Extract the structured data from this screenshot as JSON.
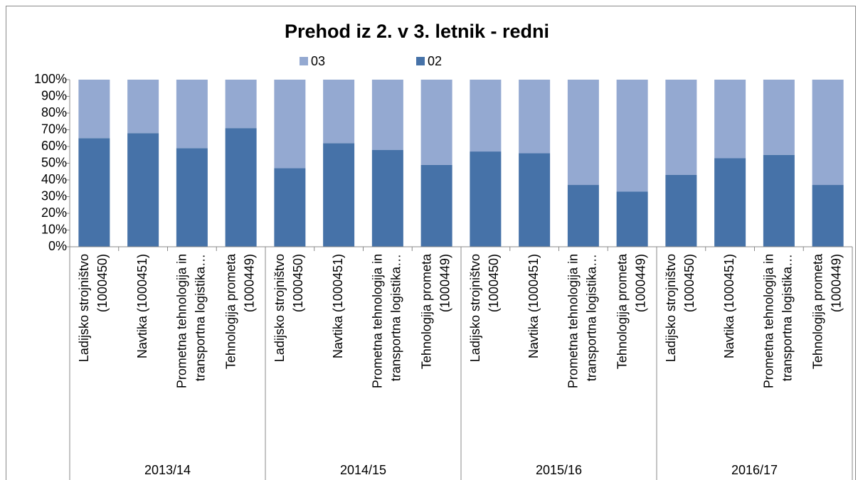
{
  "chart_data": {
    "type": "stacked_bar_100",
    "title": "Prehod iz 2. v 3. letnik - redni",
    "groups": [
      {
        "label": "2013/14",
        "categories": [
          [
            "Ladijsko strojništvo",
            "(1000450)"
          ],
          [
            "Navtika (1000451)"
          ],
          [
            "Prometna tehnologija in",
            "transportna logistika…"
          ],
          [
            "Tehnologija prometa",
            "(1000449)"
          ]
        ]
      },
      {
        "label": "2014/15",
        "categories": [
          [
            "Ladijsko strojništvo",
            "(1000450)"
          ],
          [
            "Navtika (1000451)"
          ],
          [
            "Prometna tehnologija in",
            "transportna logistika…"
          ],
          [
            "Tehnologija prometa",
            "(1000449)"
          ]
        ]
      },
      {
        "label": "2015/16",
        "categories": [
          [
            "Ladijsko strojništvo",
            "(1000450)"
          ],
          [
            "Navtika (1000451)"
          ],
          [
            "Prometna tehnologija in",
            "transportna logistika…"
          ],
          [
            "Tehnologija prometa",
            "(1000449)"
          ]
        ]
      },
      {
        "label": "2016/17",
        "categories": [
          [
            "Ladijsko strojništvo",
            "(1000450)"
          ],
          [
            "Navtika (1000451)"
          ],
          [
            "Prometna tehnologija in",
            "transportna logistika…"
          ],
          [
            "Tehnologija prometa",
            "(1000449)"
          ]
        ]
      }
    ],
    "series": [
      {
        "name": "02",
        "color": "#4672a8",
        "values": [
          65,
          68,
          59,
          71,
          47,
          62,
          58,
          49,
          57,
          56,
          37,
          33,
          43,
          53,
          55,
          37
        ]
      },
      {
        "name": "03",
        "color": "#94a9d1",
        "values": [
          35,
          32,
          41,
          29,
          53,
          38,
          42,
          51,
          43,
          44,
          63,
          67,
          57,
          47,
          45,
          63
        ]
      }
    ],
    "legend_order": [
      1,
      0
    ],
    "ylim": [
      0,
      100
    ],
    "yticks": [
      {
        "value": 0,
        "label": "0%"
      },
      {
        "value": 10,
        "label": "10%"
      },
      {
        "value": 20,
        "label": "20%"
      },
      {
        "value": 30,
        "label": "30%"
      },
      {
        "value": 40,
        "label": "40%"
      },
      {
        "value": 50,
        "label": "50%"
      },
      {
        "value": 60,
        "label": "60%"
      },
      {
        "value": 70,
        "label": "70%"
      },
      {
        "value": 80,
        "label": "80%"
      },
      {
        "value": 90,
        "label": "90%"
      },
      {
        "value": 100,
        "label": "100%"
      }
    ]
  }
}
